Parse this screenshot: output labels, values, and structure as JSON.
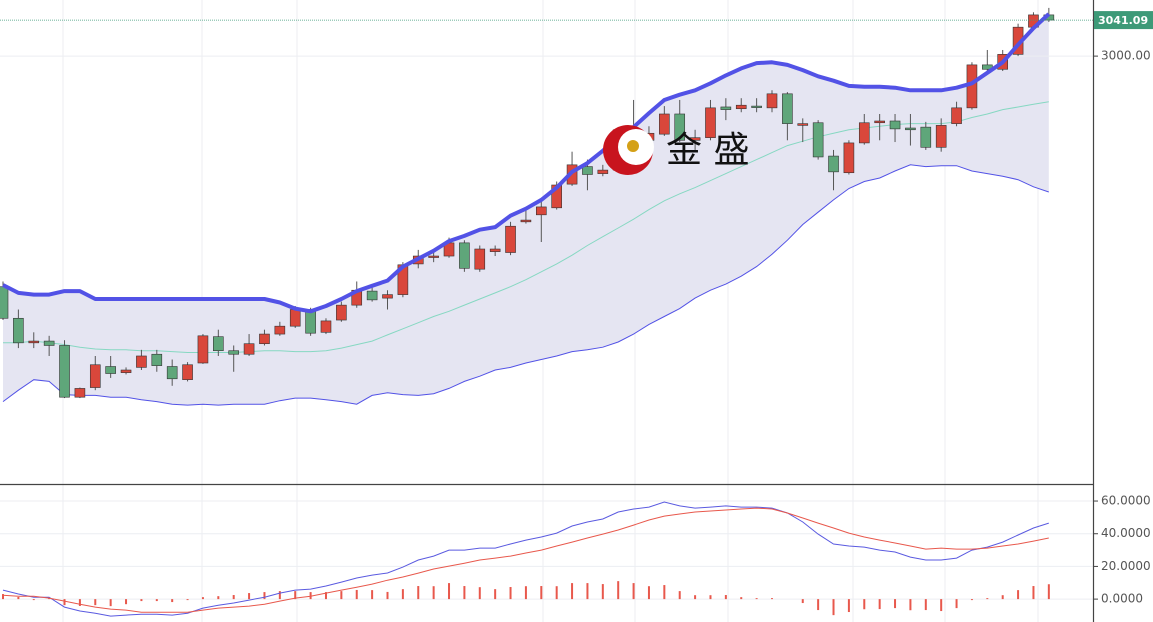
{
  "chart_data": [
    {
      "type": "candlestick",
      "ylim": [
        2512,
        3064
      ],
      "yticks": [
        {
          "value": 3000,
          "label": "3000.00"
        }
      ],
      "grid": true,
      "up_color": "#d9473b",
      "down_color": "#5fa67a",
      "band_fill": "#e5e5f2",
      "last_price_color": "#3d9a78",
      "watermark": "金 盛",
      "ohlc": [
        [
          2737,
          2743,
          2699,
          2701
        ],
        [
          2701,
          2711,
          2667,
          2673
        ],
        [
          2673,
          2685,
          2667,
          2675
        ],
        [
          2675,
          2681,
          2658,
          2670
        ],
        [
          2670,
          2676,
          2610,
          2611
        ],
        [
          2611,
          2622,
          2610,
          2621
        ],
        [
          2622,
          2658,
          2619,
          2648
        ],
        [
          2646,
          2658,
          2633,
          2638
        ],
        [
          2639,
          2645,
          2637,
          2642
        ],
        [
          2645,
          2665,
          2642,
          2658
        ],
        [
          2660,
          2665,
          2640,
          2647
        ],
        [
          2646,
          2654,
          2624,
          2632
        ],
        [
          2631,
          2651,
          2629,
          2648
        ],
        [
          2650,
          2683,
          2649,
          2681
        ],
        [
          2680,
          2688,
          2658,
          2664
        ],
        [
          2664,
          2670,
          2640,
          2660
        ],
        [
          2660,
          2683,
          2658,
          2672
        ],
        [
          2672,
          2688,
          2670,
          2683
        ],
        [
          2683,
          2697,
          2681,
          2692
        ],
        [
          2692,
          2715,
          2690,
          2711
        ],
        [
          2711,
          2713,
          2681,
          2684
        ],
        [
          2685,
          2701,
          2683,
          2698
        ],
        [
          2699,
          2720,
          2697,
          2716
        ],
        [
          2716,
          2743,
          2713,
          2733
        ],
        [
          2732,
          2736,
          2720,
          2722
        ],
        [
          2724,
          2733,
          2711,
          2728
        ],
        [
          2728,
          2765,
          2725,
          2762
        ],
        [
          2763,
          2779,
          2758,
          2772
        ],
        [
          2771,
          2779,
          2765,
          2772
        ],
        [
          2772,
          2793,
          2770,
          2787
        ],
        [
          2787,
          2790,
          2754,
          2758
        ],
        [
          2757,
          2784,
          2754,
          2780
        ],
        [
          2777,
          2784,
          2772,
          2780
        ],
        [
          2776,
          2811,
          2773,
          2806
        ],
        [
          2811,
          2825,
          2809,
          2813
        ],
        [
          2819,
          2836,
          2788,
          2828
        ],
        [
          2827,
          2857,
          2825,
          2853
        ],
        [
          2854,
          2891,
          2852,
          2876
        ],
        [
          2874,
          2882,
          2847,
          2865
        ],
        [
          2866,
          2876,
          2863,
          2870
        ],
        [
          2870,
          2918,
          2868,
          2916
        ],
        [
          2915,
          2950,
          2899,
          2904
        ],
        [
          2904,
          2920,
          2899,
          2912
        ],
        [
          2911,
          2943,
          2909,
          2934
        ],
        [
          2934,
          2950,
          2902,
          2904
        ],
        [
          2904,
          2916,
          2893,
          2907
        ],
        [
          2907,
          2950,
          2904,
          2941
        ],
        [
          2942,
          2952,
          2927,
          2939
        ],
        [
          2940,
          2952,
          2936,
          2944
        ],
        [
          2943,
          2952,
          2936,
          2942
        ],
        [
          2941,
          2961,
          2936,
          2957
        ],
        [
          2957,
          2959,
          2904,
          2923
        ],
        [
          2921,
          2929,
          2902,
          2923
        ],
        [
          2924,
          2927,
          2882,
          2885
        ],
        [
          2886,
          2893,
          2847,
          2868
        ],
        [
          2867,
          2904,
          2865,
          2901
        ],
        [
          2901,
          2934,
          2899,
          2924
        ],
        [
          2924,
          2934,
          2904,
          2926
        ],
        [
          2926,
          2934,
          2902,
          2917
        ],
        [
          2918,
          2934,
          2898,
          2916
        ],
        [
          2919,
          2925,
          2893,
          2896
        ],
        [
          2896,
          2929,
          2891,
          2921
        ],
        [
          2923,
          2948,
          2920,
          2941
        ],
        [
          2941,
          2993,
          2939,
          2990
        ],
        [
          2990,
          3007,
          2982,
          2985
        ],
        [
          2985,
          3007,
          2983,
          3002
        ],
        [
          3002,
          3037,
          3000,
          3033
        ],
        [
          3033,
          3050,
          3030,
          3047
        ],
        [
          3047,
          3055,
          3039,
          3041.09
        ]
      ],
      "series": [
        {
          "color": "#5252e6",
          "width": 4,
          "values": [
            2739,
            2730,
            2728,
            2728,
            2732,
            2732,
            2723,
            2723,
            2723,
            2723,
            2723,
            2723,
            2723,
            2723,
            2723,
            2723,
            2723,
            2723,
            2719,
            2712,
            2709,
            2715,
            2723,
            2732,
            2738,
            2744,
            2760,
            2769,
            2778,
            2789,
            2795,
            2802,
            2805,
            2818,
            2826,
            2836,
            2850,
            2868,
            2878,
            2892,
            2907,
            2919,
            2935,
            2950,
            2956,
            2961,
            2969,
            2978,
            2986,
            2992,
            2993,
            2990,
            2984,
            2977,
            2972,
            2966,
            2965,
            2965,
            2964,
            2961,
            2961,
            2961,
            2964,
            2969,
            2981,
            2993,
            3013,
            3032,
            3048
          ]
        },
        {
          "color": "#86d8c2",
          "width": 1,
          "values": [
            2673,
            2673,
            2675,
            2673,
            2671,
            2668,
            2666,
            2665,
            2665,
            2664,
            2664,
            2663,
            2662,
            2662,
            2662,
            2662,
            2663,
            2664,
            2664,
            2663,
            2663,
            2664,
            2667,
            2671,
            2675,
            2682,
            2689,
            2696,
            2703,
            2709,
            2716,
            2723,
            2730,
            2737,
            2745,
            2754,
            2763,
            2773,
            2784,
            2794,
            2804,
            2814,
            2825,
            2835,
            2843,
            2850,
            2858,
            2866,
            2874,
            2882,
            2890,
            2898,
            2903,
            2908,
            2912,
            2916,
            2918,
            2920,
            2922,
            2923,
            2923,
            2923,
            2925,
            2930,
            2934,
            2939,
            2942,
            2945,
            2948
          ]
        },
        {
          "color": "#5252e6",
          "width": 1,
          "values": [
            2606,
            2619,
            2631,
            2629,
            2614,
            2613,
            2613,
            2611,
            2611,
            2608,
            2606,
            2603,
            2602,
            2603,
            2602,
            2603,
            2603,
            2603,
            2607,
            2610,
            2610,
            2608,
            2606,
            2603,
            2613,
            2616,
            2614,
            2613,
            2615,
            2621,
            2629,
            2635,
            2642,
            2645,
            2650,
            2654,
            2658,
            2663,
            2665,
            2668,
            2674,
            2683,
            2694,
            2703,
            2712,
            2724,
            2733,
            2740,
            2749,
            2760,
            2774,
            2790,
            2808,
            2822,
            2836,
            2849,
            2857,
            2861,
            2869,
            2876,
            2874,
            2875,
            2875,
            2869,
            2866,
            2863,
            2859,
            2851,
            2845
          ]
        }
      ]
    },
    {
      "type": "macd",
      "ylim": [
        -14,
        69.2
      ],
      "grid": true,
      "yticks": [
        {
          "value": 60,
          "label": "60.0000"
        },
        {
          "value": 40,
          "label": "40.0000"
        },
        {
          "value": 20,
          "label": "20.0000"
        },
        {
          "value": 0,
          "label": "0.0000"
        }
      ],
      "series": [
        {
          "color": "#5a5ae0",
          "values": [
            5.5,
            3.1,
            1.2,
            1.2,
            -4.9,
            -7.3,
            -8.6,
            -10.4,
            -9.8,
            -9.2,
            -9.2,
            -9.8,
            -8.6,
            -5.5,
            -3.7,
            -2.4,
            -0.6,
            1.2,
            3.7,
            5.5,
            6.1,
            8.0,
            10.4,
            12.9,
            14.7,
            16.0,
            19.6,
            23.9,
            26.3,
            30.0,
            30.0,
            31.2,
            31.2,
            33.7,
            36.1,
            38.0,
            40.4,
            44.7,
            47.2,
            49.0,
            53.3,
            55.1,
            56.3,
            59.4,
            57.0,
            55.7,
            56.3,
            57.0,
            56.3,
            56.3,
            55.7,
            52.7,
            47.2,
            39.8,
            33.7,
            32.5,
            31.8,
            30.0,
            28.8,
            25.7,
            23.9,
            23.9,
            25.1,
            30.0,
            31.8,
            34.9,
            39.2,
            43.5,
            46.5
          ]
        },
        {
          "color": "#e8584c",
          "values": [
            2.4,
            1.8,
            1.8,
            0.6,
            -1.2,
            -3.1,
            -4.9,
            -6.1,
            -6.7,
            -8.0,
            -8.0,
            -8.0,
            -8.0,
            -6.7,
            -5.5,
            -4.9,
            -4.3,
            -3.1,
            -1.2,
            0.6,
            1.8,
            3.7,
            5.5,
            7.3,
            9.2,
            11.6,
            13.5,
            15.9,
            18.4,
            20.2,
            22.0,
            23.9,
            25.1,
            26.3,
            28.2,
            30.0,
            32.5,
            34.9,
            37.4,
            39.8,
            42.3,
            45.3,
            48.4,
            50.8,
            52.1,
            53.3,
            53.9,
            54.5,
            55.1,
            55.7,
            55.1,
            52.7,
            49.6,
            46.5,
            43.5,
            40.4,
            38.0,
            36.1,
            34.3,
            32.5,
            30.6,
            31.2,
            30.6,
            30.6,
            31.2,
            32.5,
            33.7,
            35.5,
            37.4
          ]
        }
      ],
      "histogram": {
        "color": "#e8584c",
        "values": [
          3.1,
          1.3,
          -0.6,
          0.6,
          -3.7,
          -4.2,
          -3.7,
          -4.3,
          -3.1,
          -1.2,
          -1.2,
          -1.8,
          -0.6,
          1.2,
          1.8,
          2.5,
          3.7,
          4.3,
          4.9,
          4.9,
          4.3,
          4.3,
          4.9,
          5.6,
          5.5,
          4.4,
          6.1,
          8.0,
          7.9,
          9.8,
          8.0,
          7.3,
          6.1,
          7.4,
          7.9,
          8.0,
          7.9,
          9.8,
          9.8,
          9.2,
          11.0,
          9.8,
          7.9,
          8.6,
          4.9,
          2.4,
          2.4,
          2.5,
          1.2,
          0.6,
          0.6,
          0,
          -2.4,
          -6.7,
          -9.8,
          -7.9,
          -6.2,
          -6.1,
          -5.5,
          -6.8,
          -6.7,
          -7.3,
          -5.5,
          -0.6,
          0.6,
          2.4,
          5.5,
          8.0,
          9.1
        ]
      }
    }
  ]
}
